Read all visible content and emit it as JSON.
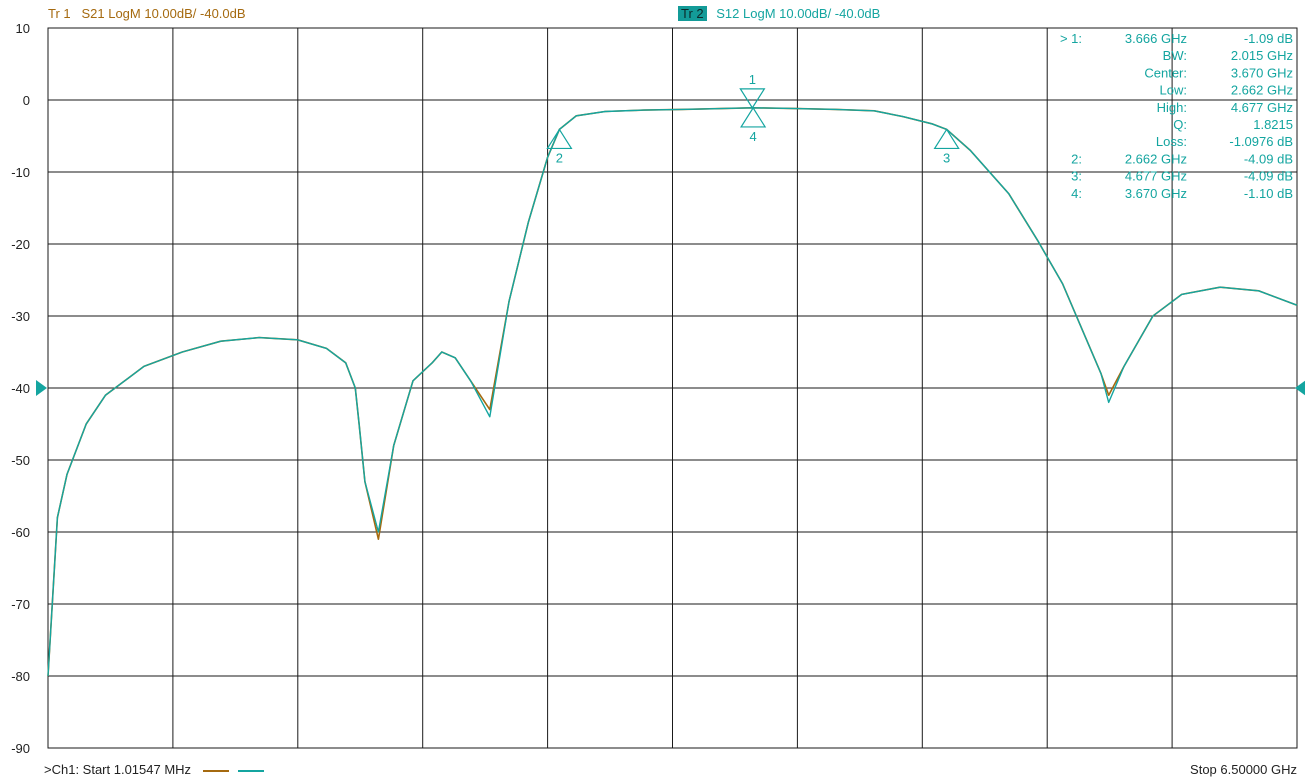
{
  "header": {
    "tr1_prefix": "Tr  1",
    "tr1_text": "S21 LogM 10.00dB/  -40.0dB",
    "tr2_box": "Tr  2",
    "tr2_text": "S12 LogM 10.00dB/  -40.0dB"
  },
  "footer": {
    "start": ">Ch1:  Start   1.01547 MHz",
    "stop": "Stop  6.50000 GHz"
  },
  "colors": {
    "trace1": "#a56a10",
    "trace2": "#14a5a0",
    "grid": "#1a1a1a",
    "background": "#ffffff"
  },
  "marker_table": [
    [
      "> 1:",
      "3.666  GHz",
      "-1.09 dB"
    ],
    [
      "",
      "BW:",
      "2.015 GHz"
    ],
    [
      "",
      "Center:",
      "3.670 GHz"
    ],
    [
      "",
      "Low:",
      "2.662 GHz"
    ],
    [
      "",
      "High:",
      "4.677 GHz"
    ],
    [
      "",
      "Q:",
      "1.8215"
    ],
    [
      "",
      "Loss:",
      "-1.0976 dB"
    ],
    [
      "2:",
      "2.662  GHz",
      "-4.09 dB"
    ],
    [
      "3:",
      "4.677  GHz",
      "-4.09 dB"
    ],
    [
      "4:",
      "3.670  GHz",
      "-1.10 dB"
    ]
  ],
  "chart_data": {
    "type": "line",
    "xlabel": "",
    "ylabel": "",
    "x_unit": "GHz",
    "y_unit": "dB",
    "xlim": [
      0.00101547,
      6.5
    ],
    "ylim": [
      -90,
      10
    ],
    "yticks": [
      10,
      0,
      -10,
      -20,
      -30,
      -40,
      -50,
      -60,
      -70,
      -80,
      -90
    ],
    "x_divisions": 10,
    "grid": true,
    "reference_level": -40,
    "series": [
      {
        "name": "S21",
        "color": "#a56a10",
        "x": [
          0.001,
          0.05,
          0.1,
          0.2,
          0.3,
          0.5,
          0.7,
          0.9,
          1.1,
          1.3,
          1.45,
          1.55,
          1.6,
          1.62,
          1.65,
          1.72,
          1.8,
          1.9,
          2.0,
          2.05,
          2.12,
          2.2,
          2.3,
          2.4,
          2.5,
          2.6,
          2.662,
          2.75,
          2.9,
          3.1,
          3.3,
          3.5,
          3.666,
          3.9,
          4.1,
          4.3,
          4.45,
          4.6,
          4.677,
          4.8,
          5.0,
          5.15,
          5.28,
          5.4,
          5.48,
          5.52,
          5.6,
          5.75,
          5.9,
          6.1,
          6.3,
          6.5
        ],
        "y": [
          -80,
          -58,
          -52,
          -45,
          -41,
          -37,
          -35,
          -33.5,
          -33,
          -33.3,
          -34.5,
          -36.5,
          -40,
          -45,
          -53,
          -61,
          -48,
          -39,
          -36.5,
          -35,
          -35.8,
          -39,
          -43,
          -28,
          -17,
          -8,
          -4.09,
          -2.2,
          -1.6,
          -1.4,
          -1.3,
          -1.2,
          -1.09,
          -1.2,
          -1.3,
          -1.5,
          -2.3,
          -3.3,
          -4.09,
          -7,
          -13,
          -19.5,
          -25.5,
          -33,
          -38,
          -41,
          -37,
          -30,
          -27,
          -26,
          -26.5,
          -28.5
        ]
      },
      {
        "name": "S12",
        "color": "#14a5a0",
        "x": [
          0.001,
          0.05,
          0.1,
          0.2,
          0.3,
          0.5,
          0.7,
          0.9,
          1.1,
          1.3,
          1.45,
          1.55,
          1.6,
          1.62,
          1.65,
          1.72,
          1.8,
          1.9,
          2.0,
          2.05,
          2.12,
          2.2,
          2.3,
          2.4,
          2.5,
          2.6,
          2.662,
          2.75,
          2.9,
          3.1,
          3.3,
          3.5,
          3.666,
          3.9,
          4.1,
          4.3,
          4.45,
          4.6,
          4.677,
          4.8,
          5.0,
          5.15,
          5.28,
          5.4,
          5.48,
          5.52,
          5.6,
          5.75,
          5.9,
          6.1,
          6.3,
          6.5
        ],
        "y": [
          -80,
          -58,
          -52,
          -45,
          -41,
          -37,
          -35,
          -33.5,
          -33,
          -33.3,
          -34.5,
          -36.5,
          -40,
          -45,
          -53,
          -60,
          -48,
          -39,
          -36.5,
          -35,
          -35.8,
          -39,
          -44,
          -28,
          -17,
          -8,
          -4.09,
          -2.2,
          -1.6,
          -1.4,
          -1.3,
          -1.2,
          -1.09,
          -1.2,
          -1.3,
          -1.5,
          -2.3,
          -3.3,
          -4.09,
          -7,
          -13,
          -19.5,
          -25.5,
          -33,
          -38,
          -42,
          -37,
          -30,
          -27,
          -26,
          -26.5,
          -28.5
        ]
      }
    ],
    "markers": [
      {
        "label": "1",
        "x": 3.666,
        "y": -1.09,
        "shape": "down-triangle"
      },
      {
        "label": "2",
        "x": 2.662,
        "y": -4.09,
        "shape": "up-triangle"
      },
      {
        "label": "3",
        "x": 4.677,
        "y": -4.09,
        "shape": "up-triangle"
      },
      {
        "label": "4",
        "x": 3.67,
        "y": -1.1,
        "shape": "up-triangle"
      }
    ]
  }
}
